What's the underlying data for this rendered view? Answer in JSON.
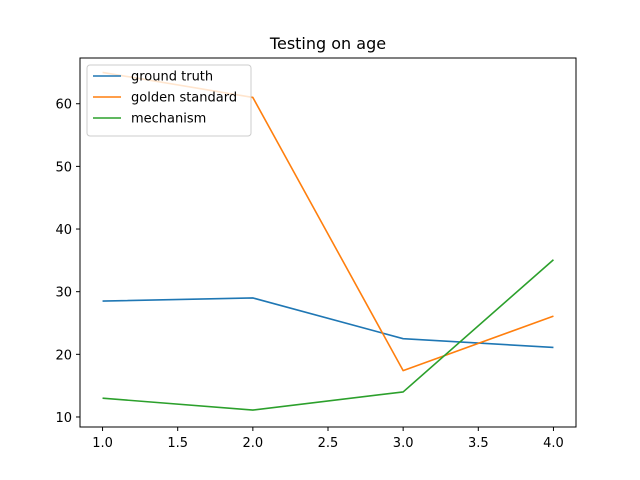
{
  "chart_data": {
    "type": "line",
    "title": "Testing on age",
    "xlabel": "",
    "ylabel": "",
    "xlim": [
      0.85,
      4.15
    ],
    "ylim": [
      8.4,
      67.3
    ],
    "x_ticks": [
      1.0,
      1.5,
      2.0,
      2.5,
      3.0,
      3.5,
      4.0
    ],
    "x_tick_labels": [
      "1.0",
      "1.5",
      "2.0",
      "2.5",
      "3.0",
      "3.5",
      "4.0"
    ],
    "y_ticks": [
      10,
      20,
      30,
      40,
      50,
      60
    ],
    "y_tick_labels": [
      "10",
      "20",
      "30",
      "40",
      "50",
      "60"
    ],
    "grid": false,
    "legend_position": "top-left",
    "x": [
      1,
      2,
      3,
      4
    ],
    "series": [
      {
        "name": "ground truth",
        "color": "#1f77b4",
        "values": [
          28.5,
          29.0,
          22.5,
          21.1
        ]
      },
      {
        "name": "golden standard",
        "color": "#ff7f0e",
        "values": [
          65.0,
          61.0,
          17.4,
          26.1
        ]
      },
      {
        "name": "mechanism",
        "color": "#2ca02c",
        "values": [
          13.0,
          11.1,
          14.0,
          35.1
        ]
      }
    ]
  }
}
